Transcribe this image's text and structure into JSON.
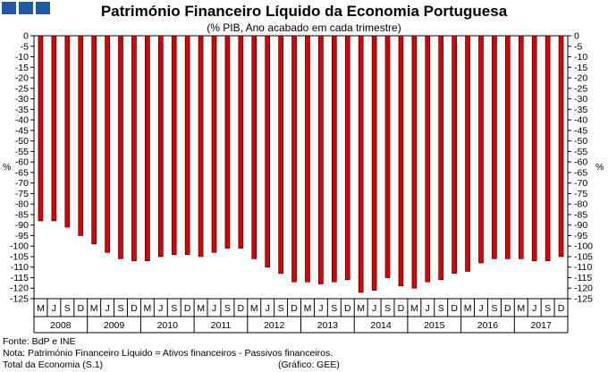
{
  "header": {
    "logo_icon": "portugal-gee-logo-icon",
    "title": "Património Financeiro Líquido da Economia Portuguesa",
    "subtitle": "(% PIB, Ano acabado em cada trimestre)"
  },
  "chart_data": {
    "type": "bar",
    "ylabel_left": "%",
    "ylabel_right": "%",
    "ylim": [
      -125,
      0
    ],
    "ytick_step": 5,
    "grid": false,
    "bar_color": "#e00000",
    "quarter_labels": [
      "M",
      "J",
      "S",
      "D",
      "M",
      "J",
      "S",
      "D",
      "M",
      "J",
      "S",
      "D",
      "M",
      "J",
      "S",
      "D",
      "M",
      "J",
      "S",
      "D",
      "M",
      "J",
      "S",
      "D",
      "M",
      "J",
      "S",
      "D",
      "M",
      "J",
      "S",
      "D",
      "M",
      "J",
      "S",
      "D",
      "M",
      "J",
      "S",
      "D"
    ],
    "years": [
      "2008",
      "2009",
      "2010",
      "2011",
      "2012",
      "2013",
      "2014",
      "2015",
      "2016",
      "2017"
    ],
    "values": [
      -88,
      -88,
      -91,
      -95,
      -99,
      -103,
      -106,
      -107,
      -107,
      -105,
      -104,
      -104,
      -105,
      -103,
      -101,
      -101,
      -106,
      -110,
      -113,
      -117,
      -117,
      -118,
      -117,
      -116,
      -122,
      -121,
      -115,
      -119,
      -120,
      -117,
      -116,
      -113,
      -112,
      -108,
      -106,
      -106,
      -106,
      -107,
      -107,
      -105
    ]
  },
  "footer": {
    "source": "Fonte: BdP e INE",
    "note": "Nota: Património Financeiro Líquido = Ativos financeiros - Passivos financeiros.",
    "total": "Total da Economia (S.1)",
    "credit": "(Gráfico: GEE)"
  }
}
